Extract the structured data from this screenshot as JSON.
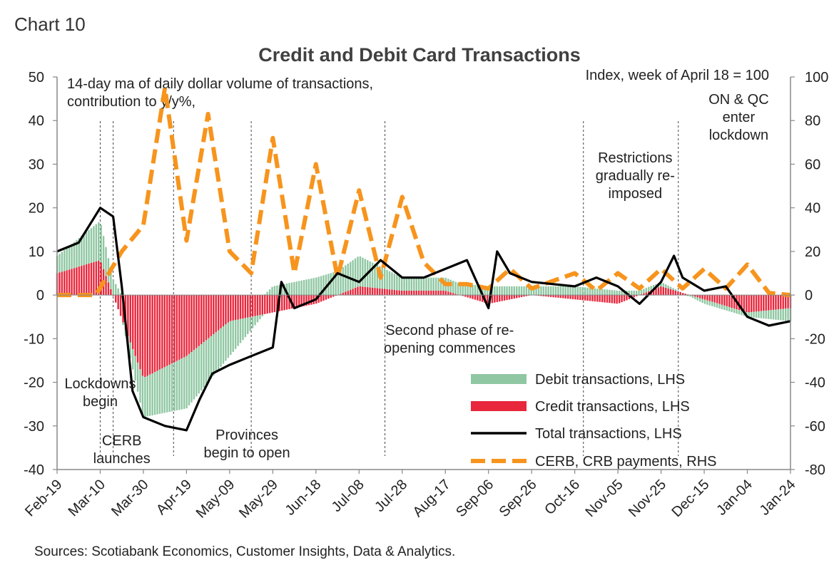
{
  "chart_label": "Chart 10",
  "source": "Sources: Scotiabank Economics, Customer Insights, Data & Analytics.",
  "chart_data": {
    "type": "bar",
    "title": "Credit and Debit Card Transactions",
    "left_axis_note": [
      "14-day ma of daily dollar volume of transactions,",
      "contribution to y/y%,"
    ],
    "right_axis_note": "Index, week of April 18 = 100",
    "y_left": {
      "min": -40,
      "max": 50,
      "ticks": [
        50,
        40,
        30,
        20,
        10,
        0,
        -10,
        -20,
        -30,
        -40
      ]
    },
    "y_right": {
      "min": -80,
      "max": 100,
      "ticks": [
        100,
        80,
        60,
        40,
        20,
        0,
        -20,
        -40,
        -60,
        -80
      ]
    },
    "x_ticks": [
      "Feb-19",
      "Mar-10",
      "Mar-30",
      "Apr-19",
      "May-09",
      "May-29",
      "Jun-18",
      "Jul-08",
      "Jul-28",
      "Aug-17",
      "Sep-06",
      "Sep-26",
      "Oct-16",
      "Nov-05",
      "Nov-25",
      "Dec-15",
      "Jan-04",
      "Jan-24"
    ],
    "series": [
      {
        "name": "Debit transactions, LHS",
        "kind": "bar",
        "axis": "left",
        "color": "#8fc7a2",
        "x": [
          0,
          1,
          2,
          3,
          4,
          5,
          6,
          7,
          8,
          9,
          10,
          11,
          12,
          13,
          14,
          15,
          16,
          17
        ],
        "values": [
          4,
          9,
          -9,
          -12,
          -8,
          2,
          4,
          7,
          3,
          3,
          2,
          2,
          2,
          1,
          1,
          -1,
          -1,
          -3
        ]
      },
      {
        "name": "Credit transactions, LHS",
        "kind": "bar",
        "axis": "left",
        "color": "#e8263c",
        "x": [
          0,
          1,
          2,
          3,
          4,
          5,
          6,
          7,
          8,
          9,
          10,
          11,
          12,
          13,
          14,
          15,
          16,
          17
        ],
        "values": [
          5,
          8,
          -19,
          -14,
          -6,
          -4,
          -2,
          2,
          1,
          1,
          -2,
          0,
          -1,
          -2,
          2,
          -1,
          -4,
          -3
        ]
      },
      {
        "name": "Total transactions, LHS",
        "kind": "line",
        "axis": "left",
        "color": "#000000",
        "x": [
          0,
          0.5,
          1,
          1.3,
          1.5,
          1.75,
          2,
          2.5,
          3,
          3.3,
          3.6,
          4,
          4.5,
          5,
          5.2,
          5.5,
          6,
          6.5,
          7,
          7.5,
          8,
          8.5,
          9,
          9.5,
          10,
          10.2,
          10.5,
          11,
          12,
          12.5,
          13,
          13.5,
          14,
          14.3,
          14.5,
          15,
          15.5,
          16,
          16.5,
          17
        ],
        "values": [
          10,
          12,
          20,
          18,
          2,
          -22,
          -28,
          -30,
          -31,
          -24,
          -18,
          -16,
          -14,
          -12,
          3,
          -3,
          -1,
          5,
          3,
          8,
          4,
          4,
          6,
          8,
          -3,
          10,
          5,
          3,
          2,
          4,
          2,
          -2,
          3,
          9,
          4,
          1,
          2,
          -5,
          -7,
          -6
        ]
      },
      {
        "name": "CERB, CRB payments, RHS",
        "kind": "line",
        "axis": "right",
        "color": "#f7941d",
        "dashed": true,
        "x": [
          0,
          0.9,
          1.5,
          2,
          2.5,
          3,
          3.5,
          4,
          4.5,
          5,
          5.5,
          6,
          6.5,
          7,
          7.5,
          8,
          8.5,
          9,
          9.5,
          10,
          10.5,
          11,
          12,
          12.5,
          13,
          13.5,
          14,
          14.5,
          15,
          15.5,
          16,
          16.5,
          17
        ],
        "values": [
          0,
          0,
          20,
          32,
          95,
          25,
          83,
          20,
          10,
          72,
          10,
          60,
          8,
          48,
          8,
          45,
          15,
          5,
          5,
          3,
          12,
          3,
          10,
          2,
          10,
          3,
          12,
          3,
          12,
          3,
          14,
          1,
          0
        ]
      }
    ],
    "legend_position": "bottom-right",
    "annotations": [
      {
        "x": 1.0,
        "lines": [
          "Lockdowns",
          "begin"
        ]
      },
      {
        "x": 1.5,
        "lines": [
          "CERB",
          "launches"
        ]
      },
      {
        "x": 4.4,
        "lines": [
          "Provinces",
          "begin to open"
        ]
      },
      {
        "x": 9.1,
        "lines": [
          "Second phase of re-",
          "opening commences"
        ]
      },
      {
        "x": 13.4,
        "lines": [
          "Restrictions",
          "gradually re-",
          "imposed"
        ]
      },
      {
        "x": 15.8,
        "lines": [
          "ON & QC",
          "enter",
          "lockdown"
        ]
      }
    ],
    "vertical_markers": [
      1.0,
      1.3,
      2.7,
      4.5,
      7.6,
      12.2,
      14.4
    ],
    "grid": false
  }
}
